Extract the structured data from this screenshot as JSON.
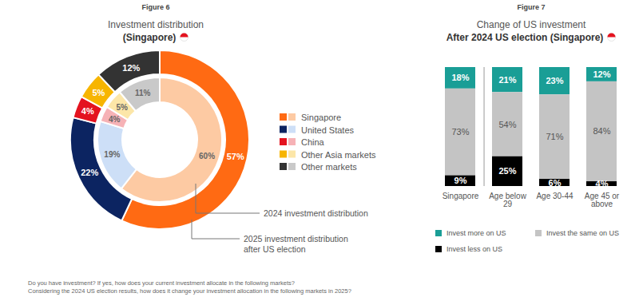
{
  "chart_data": [
    {
      "type": "pie",
      "figure": "Figure 6",
      "title": "Investment distribution",
      "subtitle": "(Singapore)",
      "categories": [
        "Singapore",
        "United States",
        "China",
        "Other Asia markets",
        "Other markets"
      ],
      "series": [
        {
          "name": "2025 investment distribution after US election",
          "values": [
            57,
            22,
            4,
            5,
            12
          ],
          "value_labels": [
            "57%",
            "22%",
            "4%",
            "5%",
            "12%"
          ],
          "colors": [
            "#ff6a13",
            "#0c2461",
            "#e4131f",
            "#f7b500",
            "#333333"
          ]
        },
        {
          "name": "2024 investment distribution",
          "values": [
            60,
            19,
            4,
            5,
            11
          ],
          "value_labels": [
            "60%",
            "19%",
            "4%",
            "5%",
            "11%"
          ],
          "colors": [
            "#fdcaa3",
            "#cddff7",
            "#f6b2b6",
            "#fce6a8",
            "#c9c9c9"
          ]
        }
      ],
      "data_labels": true,
      "legend": "right"
    },
    {
      "type": "bar",
      "figure": "Figure 7",
      "title": "Change of US investment",
      "subtitle": "After 2024 US election (Singapore)",
      "categories": [
        "Singapore",
        "Age below 29",
        "Age 30-44",
        "Age 45 or above"
      ],
      "series": [
        {
          "name": "Invest more on US",
          "color": "#1a9e96",
          "values": [
            18,
            21,
            23,
            12
          ],
          "value_labels": [
            "18%",
            "21%",
            "23%",
            "12%"
          ]
        },
        {
          "name": "Invest the same on US",
          "color": "#c4c4c4",
          "values": [
            73,
            54,
            71,
            84
          ],
          "value_labels": [
            "73%",
            "54%",
            "71%",
            "84%"
          ]
        },
        {
          "name": "Invest less on US",
          "color": "#000000",
          "values": [
            9,
            25,
            6,
            4
          ],
          "value_labels": [
            "9%",
            "25%",
            "6%",
            "4%"
          ]
        }
      ],
      "stacked": true,
      "data_labels": true,
      "ylim": [
        0,
        100
      ],
      "tick_labels": "x",
      "legend": "bottom"
    }
  ],
  "footnote": [
    "Do you have investment? If yes, how does your current investment allocate in the following markets?",
    "Considering the 2024 US election results, how does it change your investment allocation in the following markets in 2025?"
  ]
}
